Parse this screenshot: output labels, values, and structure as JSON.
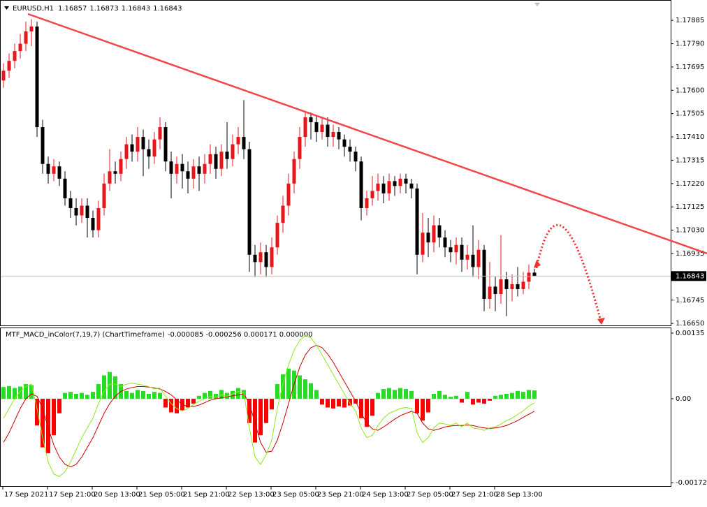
{
  "chart_data": [
    {
      "type": "candlestick",
      "title": "EURUSD,H1",
      "categories": [
        "17 Sep 2021",
        null,
        null,
        null,
        null,
        null,
        null,
        null,
        "17 Sep 21:00",
        null,
        null,
        null,
        null,
        null,
        null,
        null,
        "20 Sep 13:00",
        null,
        null,
        null,
        null,
        null,
        null,
        null,
        "21 Sep 05:00",
        null,
        null,
        null,
        null,
        null,
        null,
        null,
        "21 Sep 21:00",
        null,
        null,
        null,
        null,
        null,
        null,
        null,
        "22 Sep 13:00",
        null,
        null,
        null,
        null,
        null,
        null,
        null,
        "23 Sep 05:00",
        null,
        null,
        null,
        null,
        null,
        null,
        null,
        "23 Sep 21:00",
        null,
        null,
        null,
        null,
        null,
        null,
        null,
        "24 Sep 13:00",
        null,
        null,
        null,
        null,
        null,
        null,
        null,
        "27 Sep 05:00",
        null,
        null,
        null,
        null,
        null,
        null,
        null,
        "27 Sep 21:00",
        null,
        null,
        null,
        null,
        null,
        null,
        null,
        "28 Sep 13:00",
        null,
        null,
        null,
        null,
        null,
        null,
        null
      ],
      "open": [
        1.1764,
        1.1768,
        1.1772,
        1.1776,
        1.1779,
        1.1784,
        1.1786,
        1.1745,
        1.173,
        1.1726,
        1.1729,
        1.1724,
        1.1716,
        1.1712,
        1.1709,
        1.1713,
        1.1708,
        1.1703,
        1.1712,
        1.1722,
        1.1727,
        1.1726,
        1.1732,
        1.1738,
        1.1735,
        1.1741,
        1.1736,
        1.1733,
        1.174,
        1.1745,
        1.1731,
        1.1726,
        1.173,
        1.1727,
        1.1724,
        1.1729,
        1.1726,
        1.173,
        1.1734,
        1.1728,
        1.1735,
        1.1732,
        1.1738,
        1.1741,
        1.1736,
        1.1693,
        1.169,
        1.1694,
        1.1688,
        1.1696,
        1.1706,
        1.1713,
        1.1722,
        1.1732,
        1.1741,
        1.1749,
        1.1747,
        1.1743,
        1.1746,
        1.1741,
        1.1743,
        1.174,
        1.1737,
        1.1735,
        1.1731,
        1.1712,
        1.1716,
        1.1719,
        1.1722,
        1.1718,
        1.1723,
        1.1721,
        1.1724,
        1.1722,
        1.172,
        1.1693,
        1.1702,
        1.1698,
        1.1705,
        1.17,
        1.1696,
        1.1694,
        1.1697,
        1.1691,
        1.1693,
        1.1688,
        1.1695,
        1.1675,
        1.168,
        1.1677,
        1.1683,
        1.1679,
        1.1681,
        1.1679,
        1.1682,
        1.16857
      ],
      "high": [
        1.1771,
        1.1775,
        1.1779,
        1.1783,
        1.1788,
        1.1789,
        1.1788,
        1.1748,
        1.1733,
        1.1732,
        1.1731,
        1.1727,
        1.1719,
        1.1716,
        1.1716,
        1.1716,
        1.1711,
        1.1715,
        1.1726,
        1.1736,
        1.1731,
        1.1735,
        1.1741,
        1.1742,
        1.1745,
        1.1744,
        1.174,
        1.1743,
        1.1749,
        1.1747,
        1.1735,
        1.1733,
        1.1734,
        1.1731,
        1.1732,
        1.1733,
        1.1734,
        1.1738,
        1.1737,
        1.1738,
        1.1747,
        1.1742,
        1.1745,
        1.1756,
        1.1739,
        1.1697,
        1.1698,
        1.1697,
        1.17,
        1.1709,
        1.1717,
        1.1726,
        1.1735,
        1.1745,
        1.1751,
        1.1751,
        1.175,
        1.1749,
        1.1749,
        1.1746,
        1.1745,
        1.1742,
        1.174,
        1.1737,
        1.1733,
        1.1719,
        1.1725,
        1.1726,
        1.1725,
        1.1726,
        1.1725,
        1.1726,
        1.1726,
        1.1724,
        1.1722,
        1.171,
        1.1708,
        1.1709,
        1.1708,
        1.1703,
        1.1699,
        1.17,
        1.17,
        1.1697,
        1.1705,
        1.1699,
        1.1697,
        1.169,
        1.1684,
        1.1701,
        1.1686,
        1.1685,
        1.1688,
        1.1686,
        1.1689,
        1.16873
      ],
      "low": [
        1.1761,
        1.1765,
        1.1769,
        1.1773,
        1.1776,
        1.1778,
        1.1741,
        1.1726,
        1.1722,
        1.1723,
        1.1721,
        1.1713,
        1.1708,
        1.1705,
        1.1706,
        1.17,
        1.17,
        1.17,
        1.1709,
        1.1719,
        1.1722,
        1.1723,
        1.1728,
        1.1731,
        1.1731,
        1.1725,
        1.1728,
        1.173,
        1.1736,
        1.1727,
        1.1716,
        1.1722,
        1.172,
        1.1718,
        1.172,
        1.1719,
        1.1722,
        1.1726,
        1.1724,
        1.1725,
        1.1728,
        1.1729,
        1.1734,
        1.1732,
        1.1686,
        1.1684,
        1.1685,
        1.1684,
        1.1685,
        1.1693,
        1.1702,
        1.1709,
        1.1718,
        1.1728,
        1.1737,
        1.174,
        1.1739,
        1.174,
        1.1737,
        1.1737,
        1.1736,
        1.1733,
        1.1731,
        1.1727,
        1.1707,
        1.1709,
        1.1713,
        1.1715,
        1.1714,
        1.1715,
        1.1717,
        1.1718,
        1.1718,
        1.1716,
        1.1685,
        1.169,
        1.1692,
        1.1694,
        1.1696,
        1.1692,
        1.169,
        1.1689,
        1.1686,
        1.1687,
        1.1684,
        1.1683,
        1.167,
        1.1671,
        1.167,
        1.1673,
        1.1668,
        1.1674,
        1.1676,
        1.1677,
        1.1679,
        1.16843
      ],
      "close": [
        1.1768,
        1.1772,
        1.1776,
        1.1779,
        1.1784,
        1.1786,
        1.1745,
        1.173,
        1.1726,
        1.1729,
        1.1724,
        1.1716,
        1.1712,
        1.1709,
        1.1713,
        1.1708,
        1.1703,
        1.1712,
        1.1722,
        1.1727,
        1.1726,
        1.1732,
        1.1738,
        1.1735,
        1.1741,
        1.1736,
        1.1733,
        1.174,
        1.1745,
        1.1731,
        1.1726,
        1.173,
        1.1727,
        1.1724,
        1.1729,
        1.1726,
        1.173,
        1.1734,
        1.1728,
        1.1735,
        1.1732,
        1.1738,
        1.1741,
        1.1736,
        1.1693,
        1.169,
        1.1694,
        1.1688,
        1.1696,
        1.1706,
        1.1713,
        1.1722,
        1.1732,
        1.1741,
        1.1749,
        1.1747,
        1.1743,
        1.1746,
        1.1741,
        1.1743,
        1.174,
        1.1737,
        1.1735,
        1.1731,
        1.1712,
        1.1716,
        1.1719,
        1.1722,
        1.1718,
        1.1723,
        1.1721,
        1.1724,
        1.1722,
        1.172,
        1.1693,
        1.1702,
        1.1698,
        1.1705,
        1.17,
        1.1696,
        1.1694,
        1.1697,
        1.1691,
        1.1693,
        1.1688,
        1.1695,
        1.1675,
        1.168,
        1.1677,
        1.1683,
        1.1679,
        1.1681,
        1.1679,
        1.1682,
        1.16857,
        1.16843
      ],
      "up_color": "#e8161b",
      "down_color": "#000000",
      "last_price_line": true,
      "ylim": [
        1.16639,
        1.17968
      ],
      "yticks": [
        {
          "value": 1.17885,
          "label": "1.17885"
        },
        {
          "value": 1.1779,
          "label": "1.17790"
        },
        {
          "value": 1.17695,
          "label": "1.17695"
        },
        {
          "value": 1.176,
          "label": "1.17600"
        },
        {
          "value": 1.17505,
          "label": "1.17505"
        },
        {
          "value": 1.1741,
          "label": "1.17410"
        },
        {
          "value": 1.17315,
          "label": "1.17315"
        },
        {
          "value": 1.1722,
          "label": "1.17220"
        },
        {
          "value": 1.17125,
          "label": "1.17125"
        },
        {
          "value": 1.1703,
          "label": "1.17030"
        },
        {
          "value": 1.16935,
          "label": "1.16935"
        },
        {
          "value": 1.16745,
          "label": "1.16745"
        },
        {
          "value": 1.1665,
          "label": "1.16650"
        }
      ]
    },
    {
      "type": "macd",
      "title": "MTF_MACD_inColor(7,19,7) (ChartTimeframe)",
      "values_label": "-0.000085 -0.000256 0.000171 0.000000",
      "histogram": {
        "positive_color": "#22dd22",
        "negative_color": "#ff0000",
        "values": [
          0.00024,
          0.00026,
          0.00022,
          0.00025,
          0.0003,
          0.00028,
          -0.00055,
          -0.001,
          -0.00112,
          -0.00075,
          -0.0003,
          0.00012,
          0.00014,
          0.0001,
          0.00012,
          8e-05,
          0.00014,
          0.0003,
          0.00048,
          0.00055,
          0.00046,
          0.0003,
          0.00016,
          0.00012,
          0.00018,
          0.00016,
          0.0001,
          0.00014,
          0.00012,
          -0.00018,
          -0.00028,
          -0.0003,
          -0.00024,
          -0.00018,
          -0.0001,
          6e-05,
          0.00012,
          0.00016,
          0.0001,
          0.00018,
          0.00012,
          0.00016,
          0.00022,
          0.00018,
          -0.0005,
          -0.0009,
          -0.00075,
          -0.0005,
          -0.00022,
          0.0003,
          0.0005,
          0.00062,
          0.00058,
          0.00048,
          0.0004,
          0.00032,
          0.00018,
          -0.00012,
          -0.00018,
          -0.0002,
          -0.00016,
          -0.00018,
          -0.00014,
          -0.0001,
          -0.0004,
          -0.00058,
          -0.00035,
          0.00012,
          0.0002,
          0.00022,
          0.00018,
          0.00022,
          0.0002,
          0.00016,
          -0.0003,
          -0.00045,
          -0.00028,
          0.0001,
          0.00016,
          8e-05,
          4e-05,
          6e-05,
          -8e-05,
          0.00014,
          -0.00012,
          -8e-05,
          -0.0001,
          -4e-05,
          6e-05,
          8e-05,
          0.0001,
          0.00012,
          0.00016,
          0.00014,
          0.00018,
          0.000171
        ]
      },
      "macd": {
        "color": "#8fe81a",
        "values": [
          -0.0004,
          -0.0002,
          0,
          0.00015,
          0.00025,
          0.0003,
          -0.0002,
          -0.0008,
          -0.0013,
          -0.00155,
          -0.0016,
          -0.0015,
          -0.0013,
          -0.00105,
          -0.0008,
          -0.0006,
          -0.0004,
          -0.0001,
          0.00015,
          0.0003,
          0.0003,
          0.00025,
          0.0003,
          0.00032,
          0.0003,
          0.00028,
          0.00025,
          0.0002,
          0.00022,
          5e-05,
          -0.0001,
          -0.0002,
          -0.00025,
          -0.0002,
          -0.00012,
          -5e-05,
          0,
          5e-05,
          3e-05,
          8e-05,
          5e-05,
          0.0001,
          0.00015,
          0.00012,
          -0.0006,
          -0.0012,
          -0.00135,
          -0.00115,
          -0.00085,
          -0.0002,
          0.0003,
          0.0007,
          0.001,
          0.0012,
          0.0013,
          0.00125,
          0.0011,
          0.0009,
          0.0007,
          0.0005,
          0.0003,
          0.0001,
          -0.0001,
          -0.00025,
          -0.0006,
          -0.0008,
          -0.00075,
          -0.00055,
          -0.0004,
          -0.0003,
          -0.00025,
          -0.0002,
          -0.00018,
          -0.0002,
          -0.0007,
          -0.0009,
          -0.0008,
          -0.0006,
          -0.0005,
          -0.00052,
          -0.00055,
          -0.0005,
          -0.00058,
          -0.0005,
          -0.0006,
          -0.00062,
          -0.00065,
          -0.0006,
          -0.00058,
          -0.00052,
          -0.00045,
          -0.0004,
          -0.00032,
          -0.00025,
          -0.00015,
          -8.5e-05
        ]
      },
      "signal": {
        "color": "#cc0000",
        "values": [
          -0.0009,
          -0.0007,
          -0.00045,
          -0.0002,
          0,
          0.0001,
          5e-05,
          -0.0002,
          -0.0006,
          -0.00095,
          -0.0012,
          -0.00135,
          -0.0014,
          -0.00135,
          -0.0012,
          -0.001,
          -0.0008,
          -0.00055,
          -0.0003,
          -0.0001,
          5e-05,
          0.00015,
          0.0002,
          0.00023,
          0.00025,
          0.00025,
          0.00024,
          0.00022,
          0.0002,
          0.00015,
          8e-05,
          -2e-05,
          -0.00012,
          -0.00016,
          -0.00016,
          -0.00013,
          -8e-05,
          -3e-05,
          0,
          2e-05,
          4e-05,
          6e-05,
          8e-05,
          0.0001,
          -0.0001,
          -0.0005,
          -0.0009,
          -0.0011,
          -0.00108,
          -0.00085,
          -0.0005,
          -0.0001,
          0.0003,
          0.00065,
          0.0009,
          0.00105,
          0.0011,
          0.00105,
          0.00092,
          0.00075,
          0.00055,
          0.00035,
          0.00015,
          -5e-05,
          -0.0003,
          -0.0005,
          -0.00062,
          -0.00065,
          -0.00058,
          -0.0005,
          -0.00042,
          -0.00035,
          -0.0003,
          -0.00026,
          -0.0003,
          -0.0005,
          -0.00062,
          -0.00065,
          -0.00062,
          -0.00058,
          -0.00056,
          -0.00055,
          -0.00055,
          -0.00054,
          -0.00055,
          -0.00058,
          -0.0006,
          -0.00061,
          -0.0006,
          -0.00058,
          -0.00055,
          -0.0005,
          -0.00045,
          -0.00038,
          -0.00032,
          -0.000256
        ]
      },
      "ylim": [
        -0.00181,
        0.00145
      ],
      "yticks": [
        {
          "value": 0.00135,
          "label": "0.00135"
        },
        {
          "value": 0,
          "label": "0.00"
        },
        {
          "value": -0.001727,
          "label": "-0.001727"
        }
      ]
    }
  ]
}
